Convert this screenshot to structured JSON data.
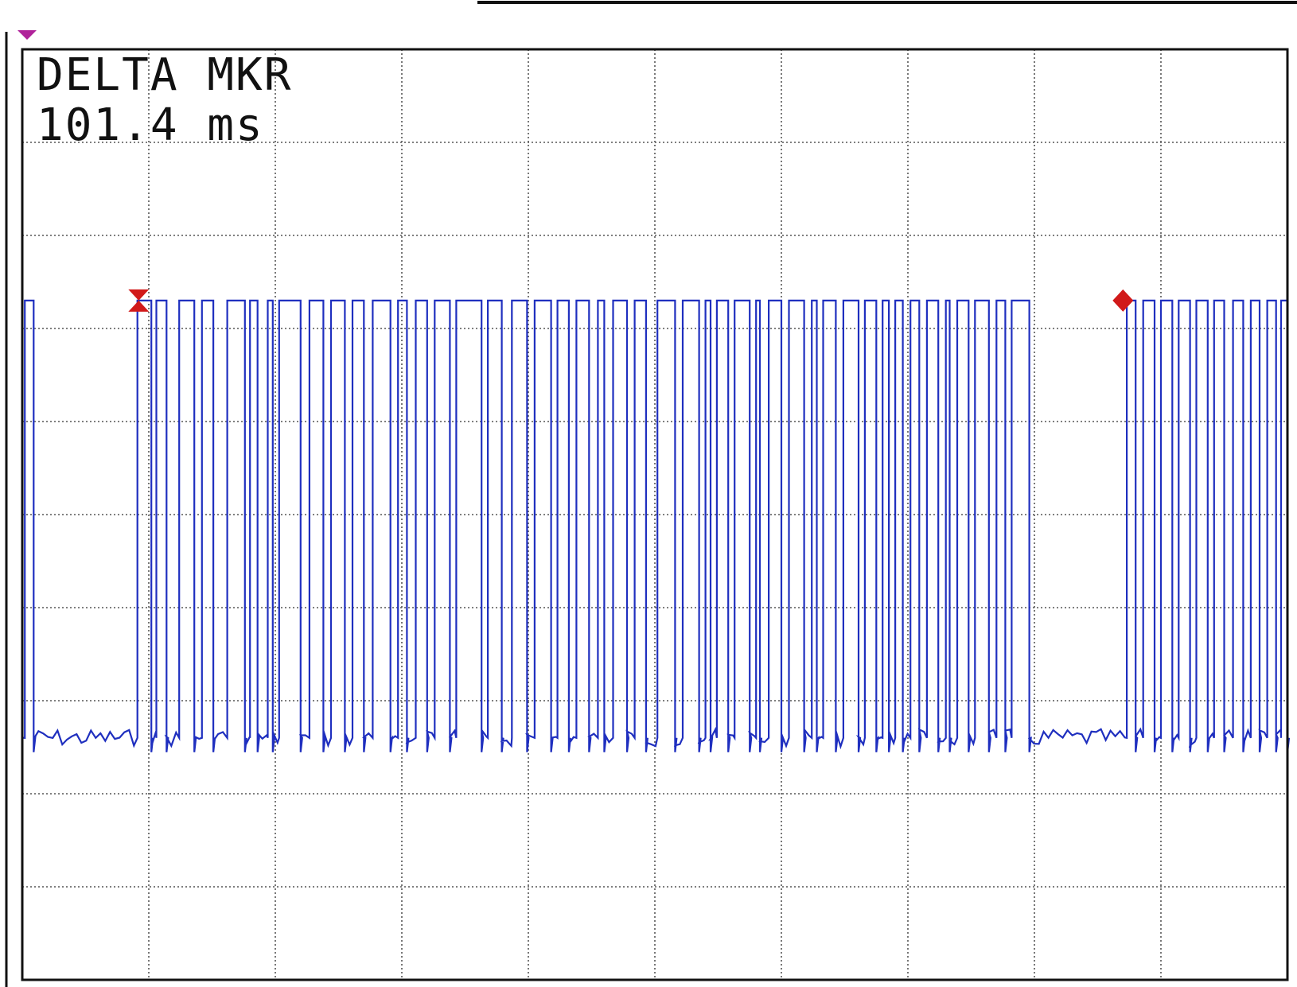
{
  "readout": {
    "line1": "DELTA MKR",
    "line2": "101.4 ms"
  },
  "colors": {
    "trace": "#1f2fbf",
    "marker": "#d11a1a",
    "trigger": "#b0229a",
    "grid": "#555555",
    "frame": "#111111"
  },
  "chart_data": {
    "type": "line",
    "title": "",
    "xlabel": "",
    "ylabel": "",
    "divisions": {
      "x": 10,
      "y": 10
    },
    "xlim": [
      0,
      10
    ],
    "ylim": [
      0,
      10
    ],
    "grid": true,
    "legend": "none",
    "markers": [
      {
        "name": "reference",
        "shape": "hourglass",
        "x": 0.92,
        "y": 7.3
      },
      {
        "name": "active",
        "shape": "diamond",
        "x": 8.7,
        "y": 7.3
      }
    ],
    "trigger_level_marker": {
      "shape": "triangle-down",
      "x": 0.0,
      "y": 10.0
    },
    "delta_marker": {
      "label": "DELTA MKR",
      "value": 101.4,
      "unit": "ms"
    },
    "series": [
      {
        "name": "",
        "logic_high": 7.3,
        "logic_low": 2.6,
        "high_pulses": [
          [
            0.02,
            0.09
          ],
          [
            0.91,
            1.02
          ],
          [
            1.06,
            1.14
          ],
          [
            1.24,
            1.36
          ],
          [
            1.42,
            1.51
          ],
          [
            1.62,
            1.76
          ],
          [
            1.8,
            1.86
          ],
          [
            1.94,
            1.98
          ],
          [
            2.03,
            2.2
          ],
          [
            2.27,
            2.38
          ],
          [
            2.44,
            2.55
          ],
          [
            2.61,
            2.7
          ],
          [
            2.77,
            2.91
          ],
          [
            2.97,
            3.04
          ],
          [
            3.11,
            3.2
          ],
          [
            3.26,
            3.38
          ],
          [
            3.43,
            3.63
          ],
          [
            3.68,
            3.79
          ],
          [
            3.87,
            3.99
          ],
          [
            4.05,
            4.18
          ],
          [
            4.23,
            4.32
          ],
          [
            4.38,
            4.48
          ],
          [
            4.55,
            4.6
          ],
          [
            4.67,
            4.78
          ],
          [
            4.84,
            4.93
          ],
          [
            5.02,
            5.16
          ],
          [
            5.22,
            5.35
          ],
          [
            5.4,
            5.44
          ],
          [
            5.49,
            5.58
          ],
          [
            5.63,
            5.75
          ],
          [
            5.8,
            5.83
          ],
          [
            5.9,
            6.0
          ],
          [
            6.06,
            6.18
          ],
          [
            6.24,
            6.28
          ],
          [
            6.33,
            6.43
          ],
          [
            6.49,
            6.61
          ],
          [
            6.66,
            6.75
          ],
          [
            6.8,
            6.85
          ],
          [
            6.9,
            6.96
          ],
          [
            7.02,
            7.09
          ],
          [
            7.15,
            7.24
          ],
          [
            7.3,
            7.33
          ],
          [
            7.39,
            7.48
          ],
          [
            7.53,
            7.64
          ],
          [
            7.7,
            7.77
          ],
          [
            7.82,
            7.96
          ],
          [
            8.73,
            8.8
          ],
          [
            8.86,
            8.95
          ],
          [
            9.0,
            9.09
          ],
          [
            9.14,
            9.23
          ],
          [
            9.28,
            9.37
          ],
          [
            9.42,
            9.5
          ],
          [
            9.57,
            9.65
          ],
          [
            9.71,
            9.78
          ],
          [
            9.84,
            9.91
          ],
          [
            9.95,
            10.0
          ]
        ]
      }
    ]
  }
}
